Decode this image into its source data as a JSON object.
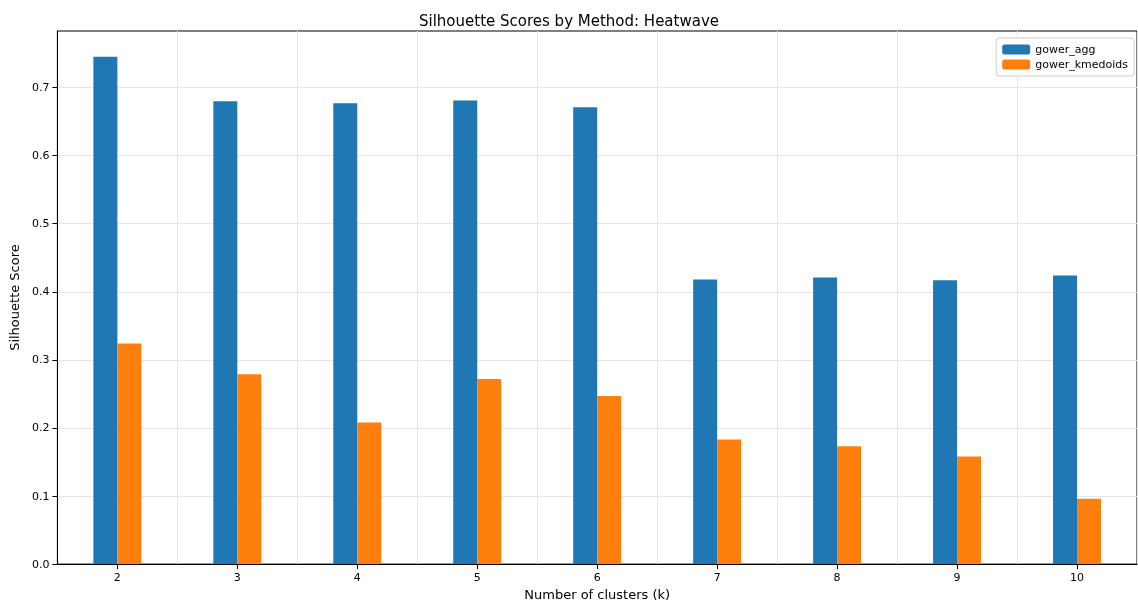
{
  "chart_data": {
    "type": "bar",
    "title": "Silhouette Scores by Method: Heatwave",
    "xlabel": "Number of clusters (k)",
    "ylabel": "Silhouette Score",
    "categories": [
      "2",
      "3",
      "4",
      "5",
      "6",
      "7",
      "8",
      "9",
      "10"
    ],
    "series": [
      {
        "name": "gower_agg",
        "color": "#1f77b4",
        "values": [
          0.745,
          0.68,
          0.677,
          0.681,
          0.671,
          0.418,
          0.421,
          0.417,
          0.424
        ]
      },
      {
        "name": "gower_kmedoids",
        "color": "#ff7f0e",
        "values": [
          0.324,
          0.279,
          0.208,
          0.272,
          0.247,
          0.183,
          0.173,
          0.158,
          0.096
        ]
      }
    ],
    "ylim": [
      0,
      0.783
    ],
    "yticks": [
      {
        "value": 0,
        "label": "0.0"
      },
      {
        "value": 0.1,
        "label": "0.1"
      },
      {
        "value": 0.2,
        "label": "0.2"
      },
      {
        "value": 0.3,
        "label": "0.3"
      },
      {
        "value": 0.4,
        "label": "0.4"
      },
      {
        "value": 0.5,
        "label": "0.5"
      },
      {
        "value": 0.6,
        "label": "0.6"
      },
      {
        "value": 0.7,
        "label": "0.7"
      }
    ],
    "grid": true,
    "legend": "top right"
  }
}
